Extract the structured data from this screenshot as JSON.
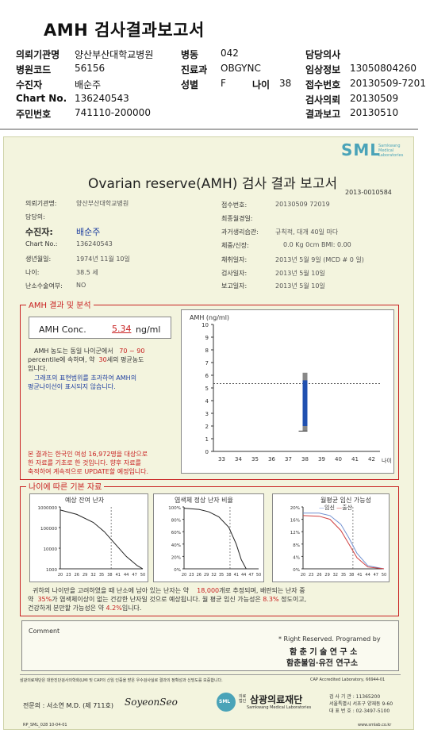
{
  "header": {
    "title": "AMH 검사결과보고서",
    "rows": [
      {
        "l1": "의뢰기관명",
        "v1": "양산부산대학교병원",
        "l2": "병동",
        "v2": "042",
        "l3": "담당의사",
        "v3": ""
      },
      {
        "l1": "병원코드",
        "v1": "56156",
        "l2": "진료과",
        "v2": "OBGYNC",
        "l3": "임상정보",
        "v3": "13050804260"
      },
      {
        "l1": "수진자",
        "v1": "배순주",
        "l2": "성별",
        "v2": "F",
        "l2b": "나이",
        "v2b": "38",
        "l3": "접수번호",
        "v3": "20130509-7201"
      },
      {
        "l1": "Chart No.",
        "v1": "136240543",
        "l2": "",
        "v2": "",
        "l3": "검사의뢰",
        "v3": "20130509"
      },
      {
        "l1": "주민번호",
        "v1": "741110-200000",
        "l2": "",
        "v2": "",
        "l3": "결과보고",
        "v3": "20130510"
      }
    ]
  },
  "report": {
    "logo": "SML",
    "logo_sub": [
      "Samkwang",
      "Medical",
      "Laboratories"
    ],
    "title": "Ovarian reserve(AMH) 검사 결과 보고서",
    "doc_no": "2013-0010584",
    "left_info": [
      {
        "label": "의뢰기관명:",
        "value": "양산부산대학교병원"
      },
      {
        "label": "담당의:",
        "value": ""
      },
      {
        "label": "수진자:",
        "value": "배순주"
      },
      {
        "label": "Chart No.:",
        "value": "136240543"
      },
      {
        "label": "생년월일:",
        "value": "1974년 11월 10일"
      },
      {
        "label": "나이:",
        "value": "38.5 세"
      },
      {
        "label": "난소수술여부:",
        "value": "NO"
      }
    ],
    "right_info": [
      {
        "label": "접수번호:",
        "value": "20130509 72019"
      },
      {
        "label": "최종월경일:",
        "value": ""
      },
      {
        "label": "과거생리습관:",
        "value": "규칙적,  대개  40일 마다"
      },
      {
        "label": "체중/신장:",
        "value": "0.0 Kg      0cm     BMI:   0.00"
      },
      {
        "label": "채취일자:",
        "value": "2013년 5월 9일     (MCD # 0 일)"
      },
      {
        "label": "검사일자:",
        "value": "2013년 5월 10일"
      },
      {
        "label": "보고일자:",
        "value": "2013년 5월 10일"
      }
    ],
    "amh_section": {
      "title": "AMH 결과 및 분석",
      "conc_label": "AMH Conc.",
      "conc_value": "5.34",
      "conc_unit": "ng/ml",
      "text1a": "AMH 농도는 동일 나이군에서",
      "text1b": "70 ~ 90",
      "text2a": "percentile에 속하며, 약",
      "text2b": "30",
      "text2c": "세의 평균농도",
      "text3": "입니다.",
      "text4": "그래프의 표현범위를 초과하여 AMH의",
      "text5": "평균나이선이 표시되지 않습니다.",
      "note1": "본 결과는 한국인 여성 16,972명을 대상으로",
      "note2": "한 자료를 기초로 한 것입니다. 향후 자료를",
      "note3": "축적하여 계속적으로 UPDATE할 예정입니다."
    },
    "basic_section": {
      "title": "나이에 따른 기본 자료",
      "panel1_title": "예상 잔여 난자",
      "panel1_y": [
        "1000000",
        "100000",
        "10000",
        "1000"
      ],
      "panel2_title": "염색체 정상 난자 비율",
      "panel2_y": [
        "100%",
        "80%",
        "60%",
        "40%",
        "20%",
        "0%"
      ],
      "panel3_title": "월평균 임신 가능성",
      "panel3_legend_a": "임신",
      "panel3_legend_b": "출산",
      "panel3_y": [
        "20%",
        "16%",
        "12%",
        "8%",
        "4%",
        "0%"
      ],
      "x_ticks": [
        "20",
        "23",
        "26",
        "29",
        "32",
        "35",
        "38",
        "41",
        "44",
        "47",
        "50"
      ],
      "summary1a": "귀하의 나이만을 고려하였을 때 난소에 남아 있는 난자는 약",
      "summary1b": "18,000",
      "summary1c": "개로 추정되며, 배란되는 난자 중",
      "summary2a": "약",
      "summary2b": "35%",
      "summary2c": "가 염색체이상이 없는 건강한 난자일 것으로 예상됩니다. 월 평균 임신 가능성은",
      "summary2d": "8.3%",
      "summary2e": "정도이고,",
      "summary3a": "건강하게 분만할 가능성은 약",
      "summary3b": "4.2%",
      "summary3c": "입니다."
    },
    "comment_label": "Comment",
    "rights": "* Right Reserved. Programed by",
    "org1": "함 춘 기 술 연 구 소",
    "org2": "함춘불임·유전 연구소",
    "footer_line": "삼광의료재단은 대한진단검사의학회(LMI 및 CAP의 신임 인증을 받은 우수검사실로 결과의 정확성과 신빙도를 보증합니다.",
    "cap": "CAP Accredited Laboratory, 66944-01",
    "doctor": "전문의 : 서소연 M.D. (제 711호)",
    "signature": "SoyeonSeo",
    "foundation": "삼광의료재단",
    "foundation_small": "의료법인",
    "foundation_en": "Samkwang Medical Laboratories",
    "contact1": "검 사 기 관 : 11365200",
    "contact2": "서울특별시 서초구 양재동 9-60",
    "contact3": "대 표 번 호 : 02-3497-5100",
    "form_code": "RP_SML_028 10-04-01",
    "url": "www.smlab.co.kr"
  },
  "chart_data": {
    "type": "bar",
    "title": "",
    "ylabel": "AMH (ng/ml)",
    "xlabel": "나이",
    "x_categories": [
      33,
      34,
      35,
      36,
      37,
      38,
      39,
      40,
      41,
      42
    ],
    "ylim": [
      0,
      10
    ],
    "y_ticks": [
      0,
      1,
      2,
      3,
      4,
      5,
      6,
      7,
      8,
      9,
      10
    ],
    "patient_value": 5.34,
    "patient_age": 38,
    "range_bar": {
      "age": 38,
      "low": 1.6,
      "high": 6.2
    },
    "blue_bar": {
      "age": 38,
      "low": 2.0,
      "high": 5.6
    }
  }
}
